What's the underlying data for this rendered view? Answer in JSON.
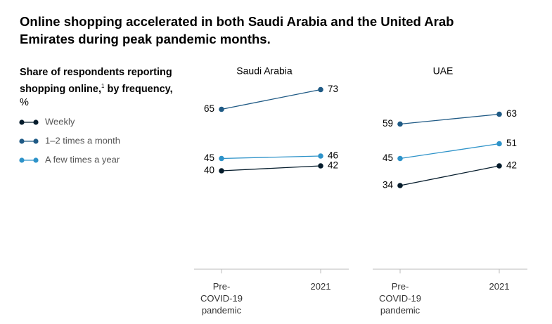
{
  "title": "Online shopping accelerated in both Saudi Arabia and the United Arab Emirates during peak pandemic months.",
  "legend_title": "Share of respondents reporting shopping online,",
  "legend_footnote": "1",
  "legend_title_cont": "by frequency,",
  "legend_unit": "%",
  "chart_data": [
    {
      "type": "line",
      "title": "Saudi Arabia",
      "categories": [
        "Pre-COVID-19 pandemic",
        "2021"
      ],
      "ylim": [
        0,
        100
      ],
      "series": [
        {
          "name": "Weekly",
          "color": "#051c2c",
          "values": [
            40,
            42
          ]
        },
        {
          "name": "1–2 times a month",
          "color": "#1f5a85",
          "values": [
            65,
            73
          ]
        },
        {
          "name": "A few times a year",
          "color": "#2e93c9",
          "values": [
            45,
            46
          ]
        }
      ]
    },
    {
      "type": "line",
      "title": "UAE",
      "categories": [
        "Pre-COVID-19 pandemic",
        "2021"
      ],
      "ylim": [
        0,
        100
      ],
      "series": [
        {
          "color": "#051c2c",
          "values": [
            34,
            42
          ]
        },
        {
          "color": "#1f5a85",
          "values": [
            59,
            63
          ]
        },
        {
          "color": "#2e93c9",
          "values": [
            45,
            51
          ]
        }
      ]
    }
  ]
}
